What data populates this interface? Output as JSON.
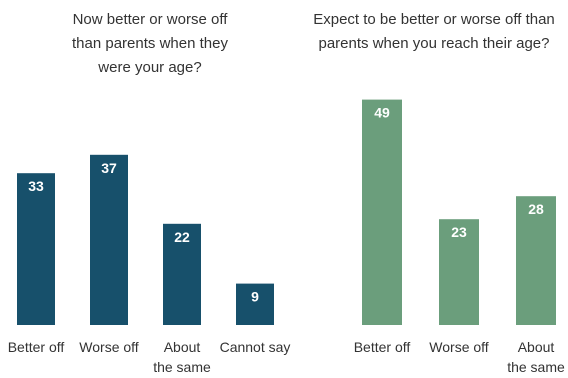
{
  "chart_data": [
    {
      "type": "bar",
      "title_lines": [
        "Now better or worse off",
        "than  parents when they",
        "were your age?"
      ],
      "categories": [
        [
          "Better off"
        ],
        [
          "Worse off"
        ],
        [
          "About",
          "the same"
        ],
        [
          "Cannot say"
        ]
      ],
      "values": [
        33,
        37,
        22,
        9
      ],
      "color": "#17506b",
      "xlabel": "",
      "ylabel": "",
      "ylim": [
        0,
        50
      ],
      "grid": false
    },
    {
      "type": "bar",
      "title_lines": [
        "Expect to be better or worse off than",
        "parents when you reach their age?"
      ],
      "categories": [
        [
          "Better off"
        ],
        [
          "Worse off"
        ],
        [
          "About",
          "the same"
        ]
      ],
      "values": [
        49,
        23,
        28
      ],
      "color": "#6b9e7c",
      "xlabel": "",
      "ylabel": "",
      "ylim": [
        0,
        50
      ],
      "grid": false
    }
  ]
}
